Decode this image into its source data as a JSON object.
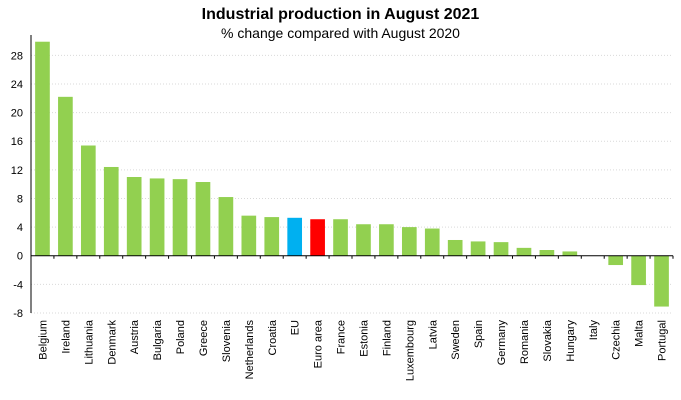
{
  "chart_data": {
    "type": "bar",
    "title": "Industrial production in August 2021",
    "subtitle": "% change compared with August 2020",
    "xlabel": "",
    "ylabel": "",
    "ylim": [
      -8,
      30
    ],
    "yticks": [
      -8,
      -4,
      0,
      4,
      8,
      12,
      16,
      20,
      24,
      28
    ],
    "grid": true,
    "legend": "none",
    "colors": {
      "default": "#92d050",
      "EU": "#00b0f0",
      "Euro area": "#ff0000",
      "grid": "#d9d9d9",
      "axis": "#000000"
    },
    "categories": [
      "Belgium",
      "Ireland",
      "Lithuania",
      "Denmark",
      "Austria",
      "Bulgaria",
      "Poland",
      "Greece",
      "Slovenia",
      "Netherlands",
      "Croatia",
      "EU",
      "Euro area",
      "France",
      "Estonia",
      "Finland",
      "Luxembourg",
      "Latvia",
      "Sweden",
      "Spain",
      "Germany",
      "Romania",
      "Slovakia",
      "Hungary",
      "Italy",
      "Czechia",
      "Malta",
      "Portugal"
    ],
    "values": [
      29.9,
      22.2,
      15.4,
      12.4,
      11.0,
      10.8,
      10.7,
      10.3,
      8.2,
      5.6,
      5.4,
      5.3,
      5.1,
      5.1,
      4.4,
      4.4,
      4.0,
      3.8,
      2.2,
      2.0,
      1.9,
      1.1,
      0.8,
      0.6,
      0.0,
      -1.3,
      -4.1,
      -7.1
    ]
  }
}
